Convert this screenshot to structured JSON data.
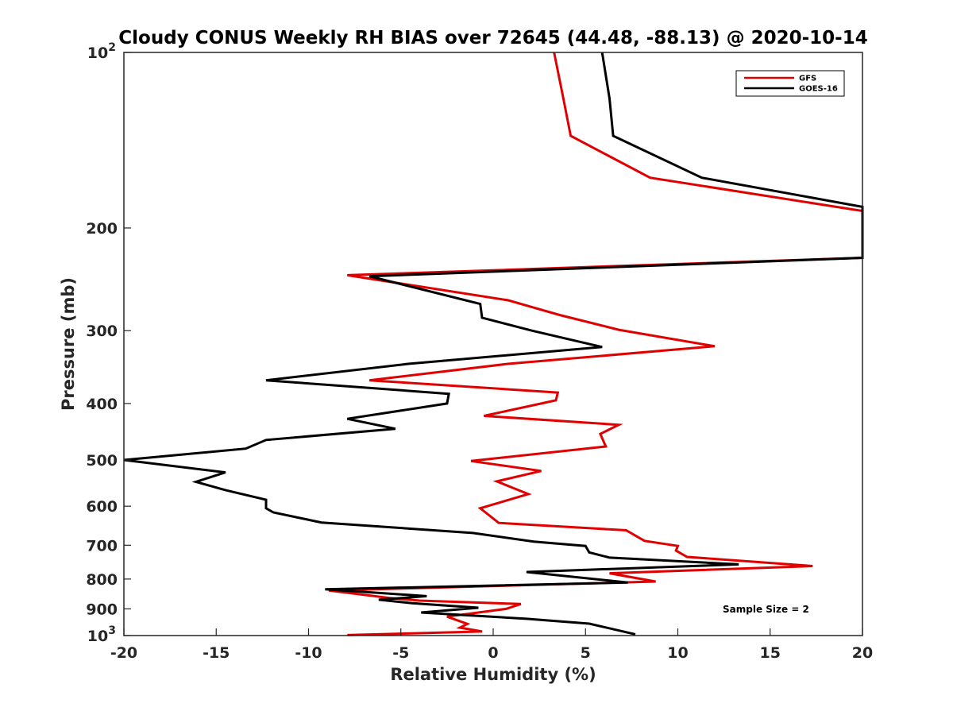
{
  "chart_data": {
    "type": "line",
    "title": "Cloudy CONUS Weekly RH BIAS over 72645 (44.48, -88.13) @ 2020-10-14",
    "xlabel": "Relative Humidity (%)",
    "ylabel": "Pressure (mb)",
    "xlim": [
      -20,
      20
    ],
    "ylim": [
      100,
      1000
    ],
    "y_scale": "log",
    "y_reversed": true,
    "grid": false,
    "legend_position": "top-right",
    "x_ticks": [
      "-20",
      "-15",
      "-10",
      "-5",
      "0",
      "5",
      "10",
      "15",
      "20"
    ],
    "y_ticks": [
      {
        "value": 100,
        "base": "10",
        "exp": "2"
      },
      {
        "value": 200,
        "label": "200"
      },
      {
        "value": 300,
        "label": "300"
      },
      {
        "value": 400,
        "label": "400"
      },
      {
        "value": 500,
        "label": "500"
      },
      {
        "value": 600,
        "label": "600"
      },
      {
        "value": 700,
        "label": "700"
      },
      {
        "value": 800,
        "label": "800"
      },
      {
        "value": 900,
        "label": "900"
      },
      {
        "value": 1000,
        "base": "10",
        "exp": "3"
      }
    ],
    "annotation": "Sample Size = 2",
    "series": [
      {
        "name": "GFS",
        "color": "#e00000",
        "points": [
          [
            3.3,
            100
          ],
          [
            3.8,
            120
          ],
          [
            4.2,
            139
          ],
          [
            8.5,
            164
          ],
          [
            20,
            187
          ],
          [
            20,
            225
          ],
          [
            -7.9,
            241
          ],
          [
            0.8,
            266
          ],
          [
            3.6,
            282
          ],
          [
            6.8,
            299
          ],
          [
            12,
            319
          ],
          [
            0.8,
            342
          ],
          [
            -6.7,
            365
          ],
          [
            3.5,
            383
          ],
          [
            3.4,
            395
          ],
          [
            -0.5,
            420
          ],
          [
            6.8,
            435
          ],
          [
            5.8,
            451
          ],
          [
            6.1,
            474
          ],
          [
            -1.2,
            502
          ],
          [
            2.6,
            522
          ],
          [
            0.2,
            544
          ],
          [
            1.9,
            572
          ],
          [
            -0.7,
            605
          ],
          [
            0.3,
            641
          ],
          [
            7.2,
            660
          ],
          [
            8.2,
            688
          ],
          [
            10,
            702
          ],
          [
            9.9,
            715
          ],
          [
            10.5,
            733
          ],
          [
            17.3,
            760
          ],
          [
            6.3,
            782
          ],
          [
            8.8,
            808
          ],
          [
            -8.9,
            837
          ],
          [
            -5.6,
            862
          ],
          [
            -4,
            871
          ],
          [
            1.5,
            883
          ],
          [
            0.7,
            900
          ],
          [
            -2.5,
            928
          ],
          [
            -1.4,
            955
          ],
          [
            -1.8,
            969
          ],
          [
            -0.6,
            984
          ],
          [
            -7.9,
            998
          ]
        ]
      },
      {
        "name": "GOES-16",
        "color": "#000000",
        "points": [
          [
            5.9,
            100
          ],
          [
            6.3,
            120
          ],
          [
            6.5,
            139
          ],
          [
            11.3,
            164
          ],
          [
            20,
            184
          ],
          [
            20,
            225
          ],
          [
            -6.7,
            242
          ],
          [
            -0.7,
            270
          ],
          [
            -0.6,
            285
          ],
          [
            2.1,
            300
          ],
          [
            5.9,
            320
          ],
          [
            -4.6,
            342
          ],
          [
            -12.3,
            365
          ],
          [
            -2.4,
            385
          ],
          [
            -2.5,
            400
          ],
          [
            -7.9,
            425
          ],
          [
            -5.3,
            442
          ],
          [
            -12.3,
            462
          ],
          [
            -13.4,
            478
          ],
          [
            -20,
            500
          ],
          [
            -14.5,
            525
          ],
          [
            -16.1,
            545
          ],
          [
            -14.5,
            563
          ],
          [
            -12.3,
            585
          ],
          [
            -12.3,
            605
          ],
          [
            -11.9,
            615
          ],
          [
            -9.3,
            640
          ],
          [
            -1.1,
            667
          ],
          [
            2.2,
            690
          ],
          [
            5,
            702
          ],
          [
            5.2,
            720
          ],
          [
            6.3,
            735
          ],
          [
            13.3,
            755
          ],
          [
            1.8,
            778
          ],
          [
            7.3,
            811
          ],
          [
            -9.1,
            833
          ],
          [
            -3.6,
            856
          ],
          [
            -6.2,
            868
          ],
          [
            -4.4,
            880
          ],
          [
            -0.8,
            896
          ],
          [
            -3.9,
            913
          ],
          [
            1.8,
            936
          ],
          [
            5.2,
            954
          ],
          [
            7.7,
            995
          ]
        ]
      }
    ]
  }
}
